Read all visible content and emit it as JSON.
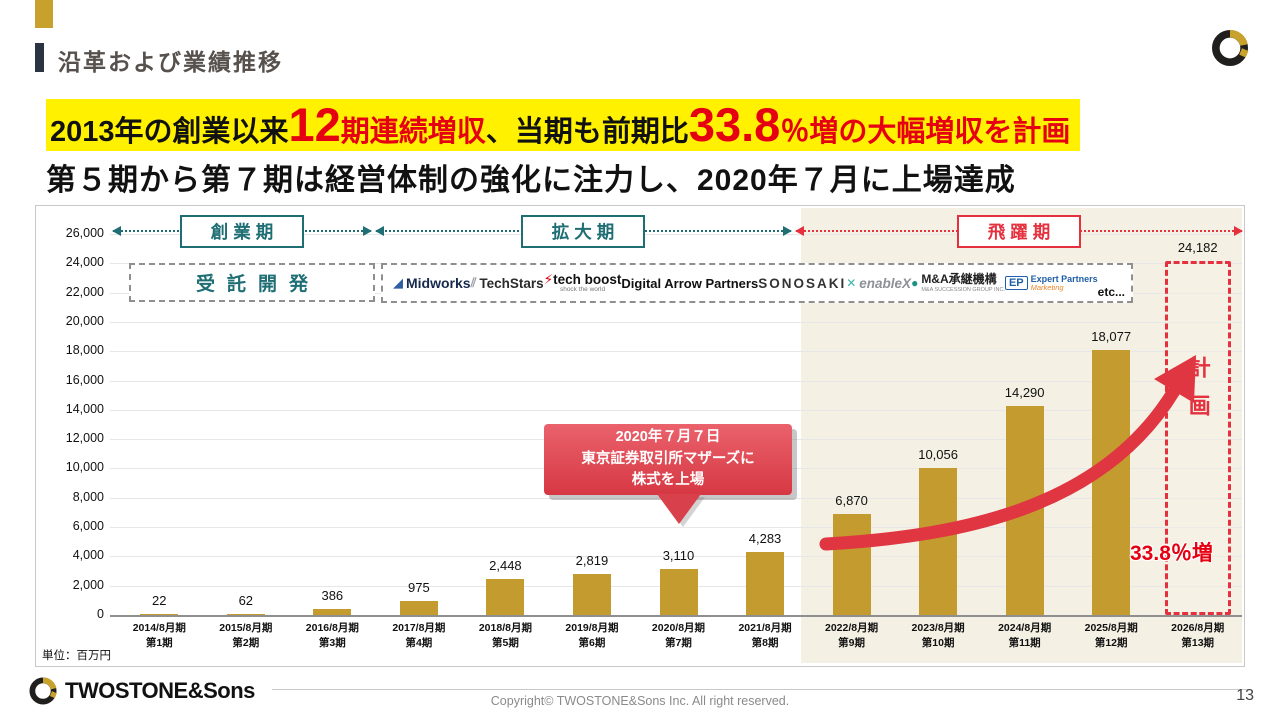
{
  "header": {
    "title": "沿革および業績推移"
  },
  "headline": {
    "seg1": "2013年の創業以来",
    "seg2": "12",
    "seg3": "期連続増収",
    "seg4": "、当期も前期比",
    "seg5": "33.8",
    "seg6": "％増の大幅増収を計画",
    "line2": "第５期から第７期は経営体制の強化に注力し、2020年７月に上場達成"
  },
  "phases": {
    "p1": "創業期",
    "p2": "拡大期",
    "p3": "飛躍期"
  },
  "business": {
    "jutaku": "受託開発",
    "logos": {
      "midworks": "Midworks",
      "techstars": "TechStars",
      "techboost": "tech boost",
      "techboost_tagline": "shock the world",
      "digital_arrow": "Digital Arrow Partners",
      "sonosaki": "SONOSAKI",
      "enablex": "enableX",
      "ma_shokei": "M&A承継機構",
      "ma_sub": "M&A SUCCESSION GROUP INC.",
      "ep_main": "EP",
      "ep_sub": "Expert Partners",
      "ep_note": "Marketing",
      "etc": "etc..."
    }
  },
  "callout": {
    "line1": "2020年７月７日",
    "line2": "東京証券取引所マザーズに",
    "line3": "株式を上場"
  },
  "annotations": {
    "plan": "計画",
    "growth": "33.8％増",
    "unit": "単位：百万円"
  },
  "footer": {
    "brand": "TWOSTONE&Sons",
    "copyright": "Copyright© TWOSTONE&Sons Inc. All right reserved.",
    "page": "13"
  },
  "colors": {
    "bar": "#C49B2F",
    "teal": "#1E6E74",
    "red": "#E5303E",
    "highlight": "#FFF100",
    "beige": "#F4F0E3"
  },
  "chart_data": {
    "type": "bar",
    "unit": "百万円",
    "categories": [
      [
        "2014/8月期",
        "第1期"
      ],
      [
        "2015/8月期",
        "第2期"
      ],
      [
        "2016/8月期",
        "第3期"
      ],
      [
        "2017/8月期",
        "第4期"
      ],
      [
        "2018/8月期",
        "第5期"
      ],
      [
        "2019/8月期",
        "第6期"
      ],
      [
        "2020/8月期",
        "第7期"
      ],
      [
        "2021/8月期",
        "第8期"
      ],
      [
        "2022/8月期",
        "第9期"
      ],
      [
        "2023/8月期",
        "第10期"
      ],
      [
        "2024/8月期",
        "第11期"
      ],
      [
        "2025/8月期",
        "第12期"
      ],
      [
        "2026/8月期",
        "第13期"
      ]
    ],
    "values": [
      22,
      62,
      386,
      975,
      2448,
      2819,
      3110,
      4283,
      6870,
      10056,
      14290,
      18077,
      24182
    ],
    "bar_color": "#C49B2F",
    "ylim": [
      0,
      26000
    ],
    "ytick_step": 2000,
    "grid": true,
    "last_bar_is_plan": true,
    "plan_growth_pct": "33.8"
  }
}
